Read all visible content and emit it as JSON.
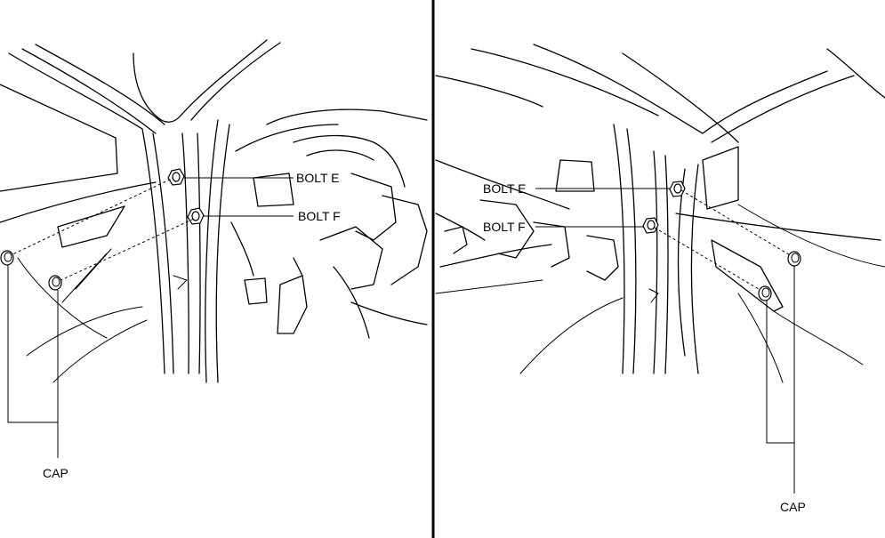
{
  "left_view": {
    "bolt_e_label": "BOLT E",
    "bolt_f_label": "BOLT F",
    "cap_label": "CAP"
  },
  "right_view": {
    "bolt_e_label": "BOLT E",
    "bolt_f_label": "BOLT F",
    "cap_label": "CAP"
  }
}
